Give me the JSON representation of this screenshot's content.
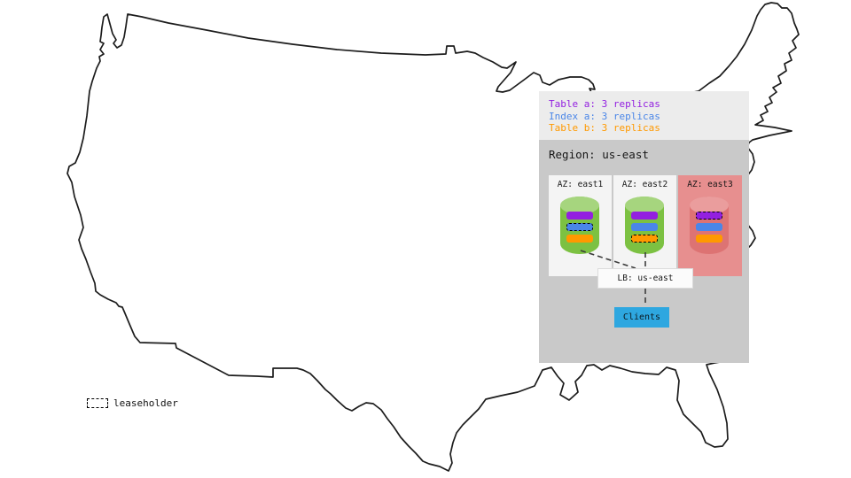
{
  "replica_legend": {
    "items": [
      {
        "label": "Table a: 3 replicas",
        "color_key": "purple"
      },
      {
        "label": "Index a: 3 replicas",
        "color_key": "blue"
      },
      {
        "label": "Table b: 3 replicas",
        "color_key": "orange"
      }
    ]
  },
  "region": {
    "title": "Region: us-east",
    "azs": [
      {
        "label": "AZ: east1",
        "status": "up",
        "replicas": [
          {
            "of": "table_a",
            "color_key": "purple",
            "leaseholder": false
          },
          {
            "of": "index_a",
            "color_key": "blue",
            "leaseholder": true
          },
          {
            "of": "table_b",
            "color_key": "orange",
            "leaseholder": false
          }
        ]
      },
      {
        "label": "AZ: east2",
        "status": "up",
        "replicas": [
          {
            "of": "table_a",
            "color_key": "purple",
            "leaseholder": false
          },
          {
            "of": "index_a",
            "color_key": "blue",
            "leaseholder": false
          },
          {
            "of": "table_b",
            "color_key": "orange",
            "leaseholder": true
          }
        ]
      },
      {
        "label": "AZ: east3",
        "status": "down",
        "replicas": [
          {
            "of": "table_a",
            "color_key": "purple",
            "leaseholder": true
          },
          {
            "of": "index_a",
            "color_key": "blue",
            "leaseholder": false
          },
          {
            "of": "table_b",
            "color_key": "orange",
            "leaseholder": false
          }
        ]
      }
    ]
  },
  "load_balancer": {
    "label": "LB: us-east"
  },
  "clients": {
    "label": "Clients"
  },
  "map_key": {
    "label": "leaseholder"
  },
  "colors": {
    "purple": "#9320e0",
    "blue": "#4a86e8",
    "orange": "#ff9900",
    "green_body": "#7cc142",
    "green_top": "#a6d57e",
    "red_body": "#dd7373",
    "red_top": "#ea9d9d",
    "az_up_bg": "#f4f4f4",
    "az_down_bg": "#e78f8f",
    "panel_top_bg": "#ececec",
    "panel_main_bg": "#c9c9c9",
    "clients_blue": "#2ea7e0"
  }
}
